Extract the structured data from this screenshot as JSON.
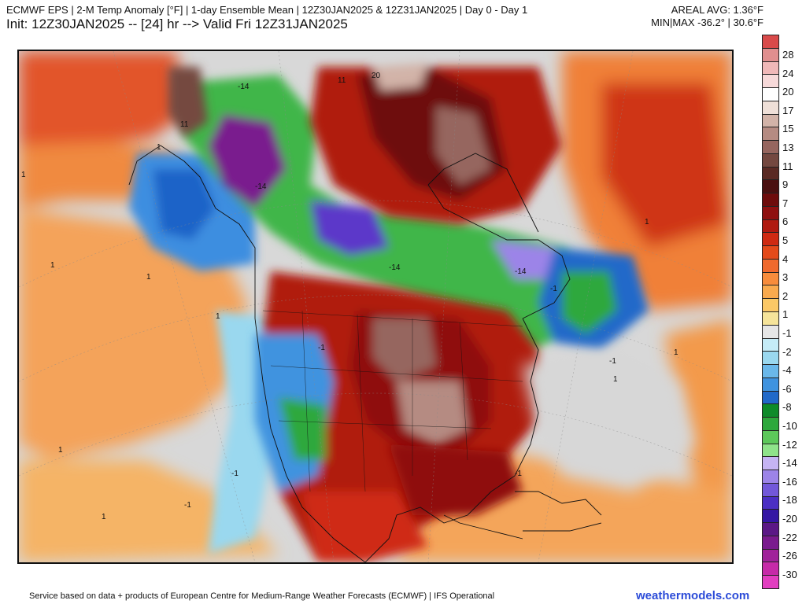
{
  "header": {
    "title_line1": "ECMWF EPS | 2-M Temp Anomaly [°F] | 1-day Ensemble Mean | 12Z30JAN2025 & 12Z31JAN2025 | Day 0 - Day 1",
    "title_line2": "Init: 12Z30JAN2025 -- [24] hr --> Valid Fri 12Z31JAN2025",
    "areal_avg": "AREAL AVG: 1.36°F",
    "min_max": "MIN|MAX -36.2° | 30.6°F"
  },
  "colorbar": {
    "unit": "°F",
    "labels": [
      "28",
      "24",
      "20",
      "17",
      "15",
      "13",
      "11",
      "9",
      "7",
      "6",
      "5",
      "4",
      "3",
      "2",
      "1",
      "-1",
      "-2",
      "-4",
      "-6",
      "-8",
      "-10",
      "-12",
      "-14",
      "-16",
      "-18",
      "-20",
      "-22",
      "-26",
      "-30"
    ],
    "colors": [
      "#d94a4a",
      "#e08f8f",
      "#f0b8b8",
      "#f7d9d9",
      "#ffffff",
      "#efe0d8",
      "#d2b3a8",
      "#b58b82",
      "#96665f",
      "#744840",
      "#5a2a24",
      "#4a1010",
      "#6e0c0c",
      "#8f1010",
      "#b01a10",
      "#cf2a12",
      "#e44a1a",
      "#f06a2e",
      "#f78c3c",
      "#f9aa4e",
      "#fbc866",
      "#f6e49a",
      "#e6e6e6",
      "#c5ecf7",
      "#9ad8ef",
      "#6ab8ea",
      "#3f93df",
      "#2169c9",
      "#0e8b2a",
      "#2da83c",
      "#5cc85a",
      "#8fe38a",
      "#c5b4f3",
      "#9c84e8",
      "#7258d9",
      "#4b2fc4",
      "#3517a4",
      "#5b1886",
      "#7a1a8e",
      "#a0229a",
      "#c62aa8",
      "#e23ec0"
    ]
  },
  "map": {
    "contour_labels": [
      "1",
      "1",
      "1",
      "1",
      "1",
      "1",
      "1",
      "1",
      "1",
      "1",
      "-1",
      "-1",
      "-1",
      "-1",
      "-1",
      "-1",
      "-14",
      "-14",
      "-14",
      "-14",
      "20",
      "11",
      "11"
    ]
  },
  "footer": {
    "credit": "Service based on data + products of European Centre for Medium-Range Weather Forecasts (ECMWF) | IFS Operational",
    "brand": "weathermodels.com"
  }
}
